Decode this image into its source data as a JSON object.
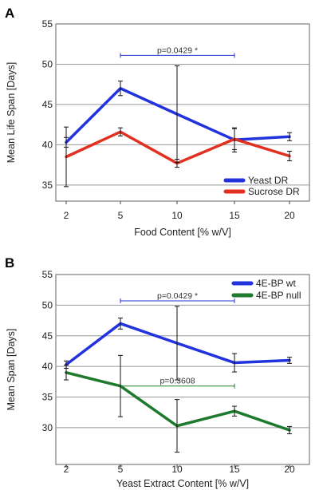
{
  "chart_data": [
    {
      "panel": "A",
      "type": "line",
      "categories": [
        "2",
        "5",
        "10",
        "15",
        "20"
      ],
      "xlabel": "Food Content [% w/V]",
      "ylabel": "Mean Life Span [Days]",
      "ylim": [
        33,
        55
      ],
      "yticks": [
        35,
        40,
        45,
        50,
        55
      ],
      "grid": true,
      "legend_position": "bottom-right",
      "series": [
        {
          "name": "Yeast DR",
          "color": "#2233dd",
          "values": [
            40.3,
            47.0,
            43.8,
            40.6,
            41.0
          ],
          "err": [
            0.6,
            0.9,
            6.0,
            1.5,
            0.5
          ]
        },
        {
          "name": "Sucrose DR",
          "color": "#e23020",
          "values": [
            38.5,
            41.6,
            37.7,
            40.7,
            38.6
          ],
          "err": [
            3.7,
            0.5,
            0.5,
            1.3,
            0.6
          ]
        }
      ],
      "annotations": [
        {
          "text": "p=0.0429 *",
          "from": "5",
          "to": "15",
          "y": 51.1,
          "color": "#2233dd"
        }
      ]
    },
    {
      "panel": "B",
      "type": "line",
      "categories": [
        "2",
        "5",
        "10",
        "15",
        "20"
      ],
      "xlabel": "Yeast Extract Content [% w/V]",
      "ylabel": "Mean Span [Days]",
      "ylim": [
        24,
        55
      ],
      "yticks": [
        30,
        35,
        40,
        45,
        50,
        55
      ],
      "grid": true,
      "legend_position": "top-right",
      "series": [
        {
          "name": "4E-BP wt",
          "color": "#2233dd",
          "values": [
            40.3,
            47.0,
            43.8,
            40.6,
            41.0
          ],
          "err": [
            0.6,
            0.9,
            6.0,
            1.5,
            0.5
          ]
        },
        {
          "name": "4E-BP null",
          "color": "#1e7a2c",
          "values": [
            39.0,
            36.8,
            30.3,
            32.7,
            29.6
          ],
          "err": [
            1.2,
            5.0,
            4.3,
            0.8,
            0.6
          ]
        }
      ],
      "annotations": [
        {
          "text": "p=0.0429 *",
          "from": "5",
          "to": "15",
          "y": 50.7,
          "color": "#2233dd"
        },
        {
          "text": "p=0.3608",
          "from": "5",
          "to": "15",
          "y": 36.8,
          "color": "#1e7a2c"
        }
      ]
    }
  ]
}
